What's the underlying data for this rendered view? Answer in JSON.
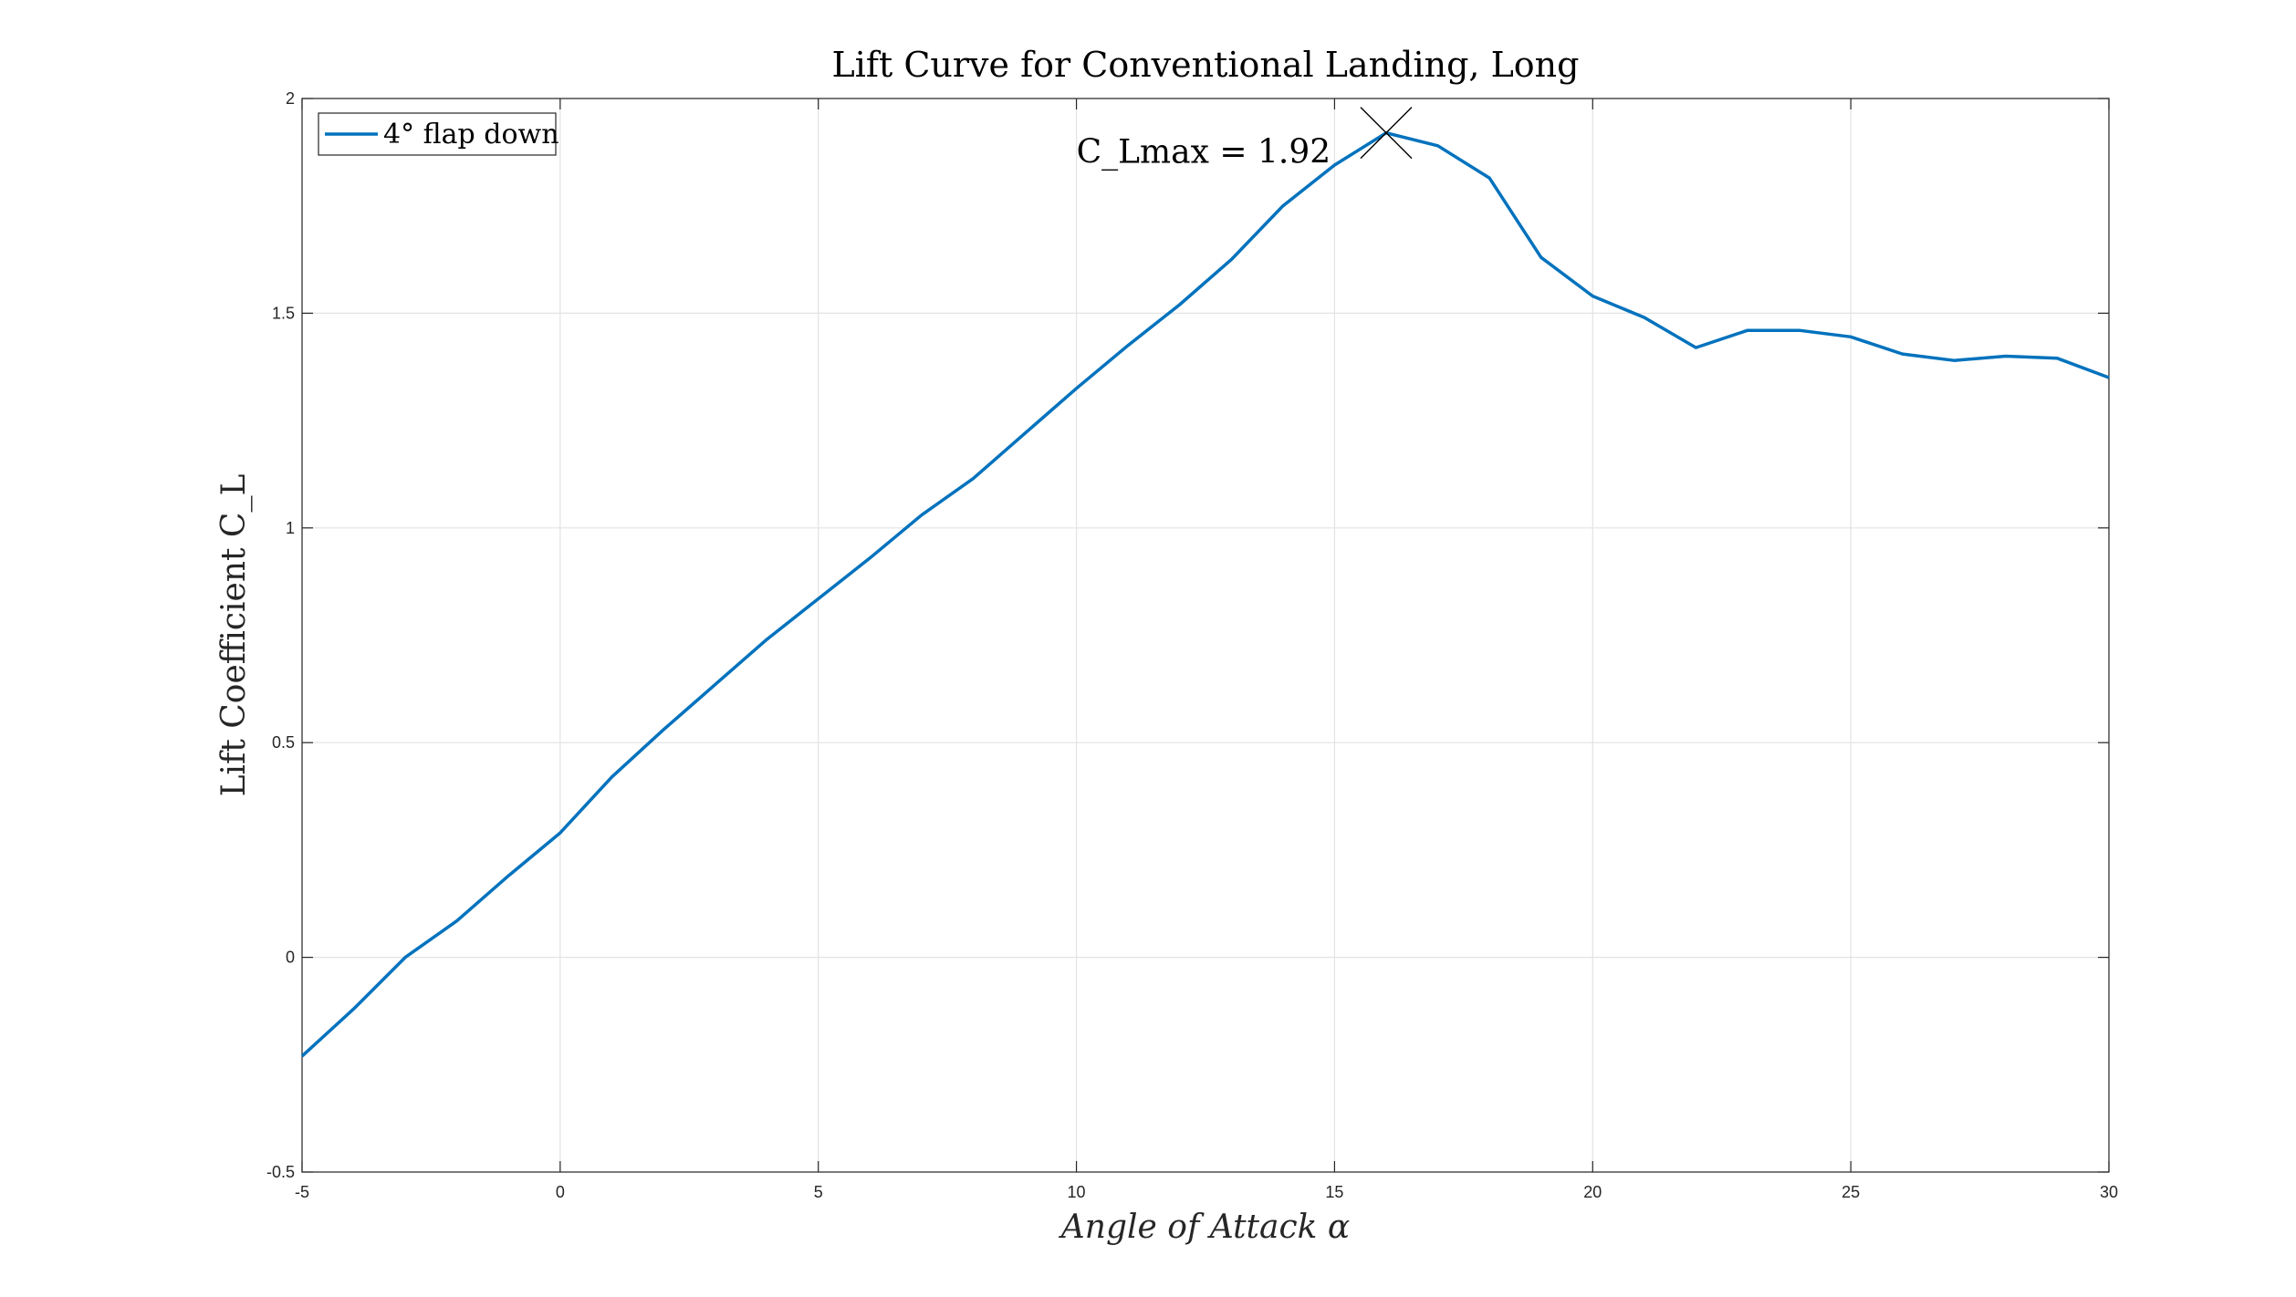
{
  "chart_data": {
    "type": "line",
    "title": "Lift Curve for Conventional Landing, Long",
    "xlabel": "Angle of Attack α",
    "ylabel": "Lift Coefficient C_L",
    "xlim": [
      -5,
      30
    ],
    "ylim": [
      -0.5,
      2
    ],
    "xticks": [
      -5,
      0,
      5,
      10,
      15,
      20,
      25,
      30
    ],
    "yticks": [
      -0.5,
      0,
      0.5,
      1,
      1.5,
      2
    ],
    "grid": true,
    "legend_position": "top-left",
    "series": [
      {
        "name": "4° flap down",
        "color": "#0072bd",
        "x": [
          -5,
          -4,
          -3,
          -2,
          -1,
          0,
          1,
          2,
          3,
          4,
          5,
          6,
          7,
          8,
          9,
          10,
          11,
          12,
          13,
          14,
          15,
          16,
          17,
          18,
          19,
          20,
          21,
          22,
          23,
          24,
          25,
          26,
          27,
          28,
          29,
          30
        ],
        "y": [
          -0.23,
          -0.12,
          0.0,
          0.085,
          0.19,
          0.29,
          0.42,
          0.53,
          0.635,
          0.74,
          0.835,
          0.93,
          1.03,
          1.115,
          1.22,
          1.325,
          1.425,
          1.52,
          1.625,
          1.75,
          1.845,
          1.92,
          1.89,
          1.815,
          1.63,
          1.54,
          1.49,
          1.42,
          1.46,
          1.46,
          1.445,
          1.405,
          1.39,
          1.4,
          1.395,
          1.35
        ]
      }
    ],
    "annotations": [
      {
        "text": "C_Lmax = 1.92",
        "marker": "x",
        "x": 16,
        "y": 1.92
      }
    ]
  }
}
